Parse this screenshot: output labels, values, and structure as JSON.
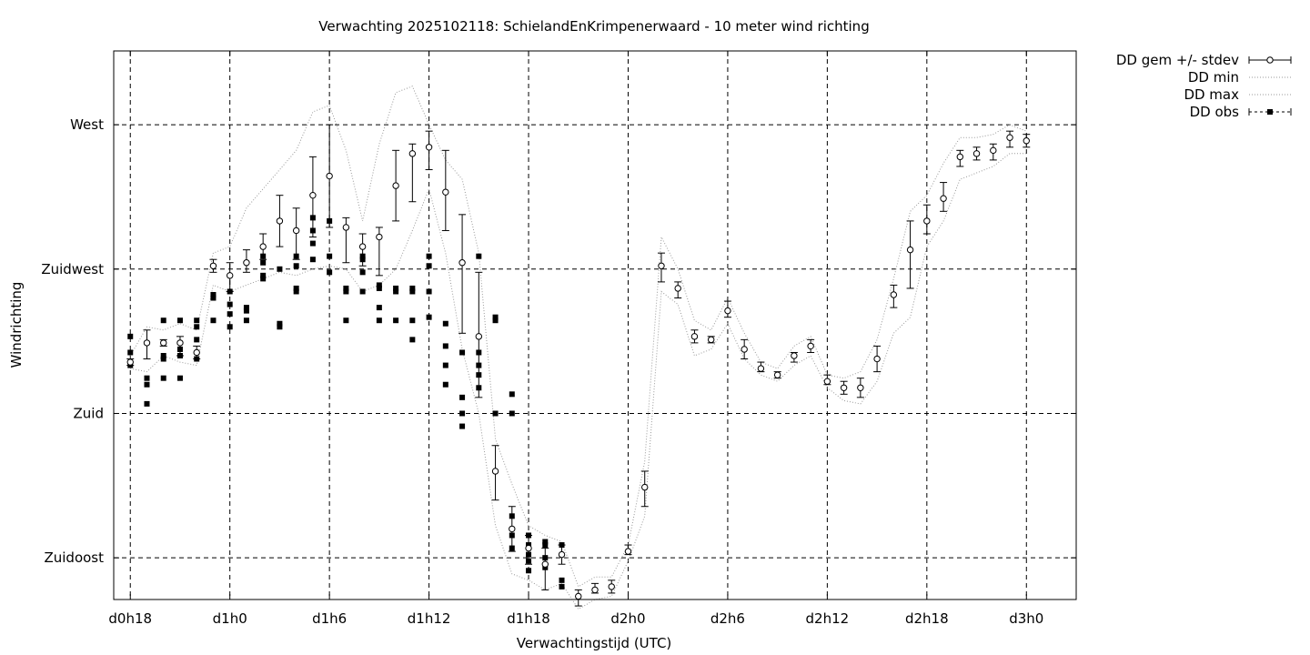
{
  "chart_data": {
    "type": "scatter",
    "title": "Verwachting 2025102118: SchielandEnKrimpenerwaard - 10 meter wind richting",
    "xlabel": "Verwachtingstijd (UTC)",
    "ylabel": "Windrichting",
    "xlim": [
      -1,
      57
    ],
    "ylim": [
      122,
      293
    ],
    "x_ticks": [
      {
        "v": 0,
        "label": "d0h18"
      },
      {
        "v": 6,
        "label": "d1h0"
      },
      {
        "v": 12,
        "label": "d1h6"
      },
      {
        "v": 18,
        "label": "d1h12"
      },
      {
        "v": 24,
        "label": "d1h18"
      },
      {
        "v": 30,
        "label": "d2h0"
      },
      {
        "v": 36,
        "label": "d2h6"
      },
      {
        "v": 42,
        "label": "d2h12"
      },
      {
        "v": 48,
        "label": "d2h18"
      },
      {
        "v": 54,
        "label": "d3h0"
      }
    ],
    "y_ticks": [
      {
        "v": 135,
        "label": "Zuidoost"
      },
      {
        "v": 180,
        "label": "Zuid"
      },
      {
        "v": 225,
        "label": "Zuidwest"
      },
      {
        "v": 270,
        "label": "West"
      }
    ],
    "grid": true,
    "legend_position": "outside-top-right",
    "legend": [
      "DD gem +/- stdev",
      "DD min",
      "DD max",
      "DD obs"
    ],
    "mean_stdev": [
      {
        "x": 0,
        "y": 196,
        "lo": 195,
        "hi": 197
      },
      {
        "x": 1,
        "y": 202,
        "lo": 197,
        "hi": 206
      },
      {
        "x": 2,
        "y": 202,
        "lo": 201,
        "hi": 203
      },
      {
        "x": 3,
        "y": 202,
        "lo": 198,
        "hi": 204
      },
      {
        "x": 4,
        "y": 199,
        "lo": 197,
        "hi": 201
      },
      {
        "x": 5,
        "y": 226,
        "lo": 224,
        "hi": 228
      },
      {
        "x": 6,
        "y": 223,
        "lo": 218,
        "hi": 227
      },
      {
        "x": 7,
        "y": 227,
        "lo": 224,
        "hi": 231
      },
      {
        "x": 8,
        "y": 232,
        "lo": 228,
        "hi": 236
      },
      {
        "x": 9,
        "y": 240,
        "lo": 232,
        "hi": 248
      },
      {
        "x": 10,
        "y": 237,
        "lo": 228,
        "hi": 244
      },
      {
        "x": 11,
        "y": 248,
        "lo": 235,
        "hi": 260
      },
      {
        "x": 12,
        "y": 254,
        "lo": 238,
        "hi": 270
      },
      {
        "x": 13,
        "y": 238,
        "lo": 227,
        "hi": 241
      },
      {
        "x": 14,
        "y": 232,
        "lo": 226,
        "hi": 236
      },
      {
        "x": 15,
        "y": 235,
        "lo": 223,
        "hi": 238
      },
      {
        "x": 16,
        "y": 251,
        "lo": 240,
        "hi": 262
      },
      {
        "x": 17,
        "y": 261,
        "lo": 246,
        "hi": 264
      },
      {
        "x": 18,
        "y": 263,
        "lo": 256,
        "hi": 268
      },
      {
        "x": 19,
        "y": 249,
        "lo": 237,
        "hi": 262
      },
      {
        "x": 20,
        "y": 227,
        "lo": 205,
        "hi": 242
      },
      {
        "x": 21,
        "y": 204,
        "lo": 185,
        "hi": 224
      },
      {
        "x": 22,
        "y": 162,
        "lo": 153,
        "hi": 170
      },
      {
        "x": 23,
        "y": 144,
        "lo": 137,
        "hi": 151
      },
      {
        "x": 24,
        "y": 138,
        "lo": 133,
        "hi": 142
      },
      {
        "x": 25,
        "y": 133,
        "lo": 125,
        "hi": 138
      },
      {
        "x": 26,
        "y": 136,
        "lo": 133,
        "hi": 139
      },
      {
        "x": 27,
        "y": 123,
        "lo": 120,
        "hi": 125
      },
      {
        "x": 28,
        "y": 125,
        "lo": 124,
        "hi": 127
      },
      {
        "x": 29,
        "y": 126,
        "lo": 124,
        "hi": 128
      },
      {
        "x": 30,
        "y": 137,
        "lo": 136,
        "hi": 139
      },
      {
        "x": 31,
        "y": 157,
        "lo": 151,
        "hi": 162
      },
      {
        "x": 32,
        "y": 226,
        "lo": 221,
        "hi": 230
      },
      {
        "x": 33,
        "y": 219,
        "lo": 216,
        "hi": 221
      },
      {
        "x": 34,
        "y": 204,
        "lo": 202,
        "hi": 206
      },
      {
        "x": 35,
        "y": 203,
        "lo": 202,
        "hi": 204
      },
      {
        "x": 36,
        "y": 212,
        "lo": 210,
        "hi": 215
      },
      {
        "x": 37,
        "y": 200,
        "lo": 197,
        "hi": 203
      },
      {
        "x": 38,
        "y": 194,
        "lo": 193,
        "hi": 196
      },
      {
        "x": 39,
        "y": 192,
        "lo": 191,
        "hi": 193
      },
      {
        "x": 40,
        "y": 198,
        "lo": 196,
        "hi": 199
      },
      {
        "x": 41,
        "y": 201,
        "lo": 199,
        "hi": 203
      },
      {
        "x": 42,
        "y": 190,
        "lo": 189,
        "hi": 192
      },
      {
        "x": 43,
        "y": 188,
        "lo": 186,
        "hi": 190
      },
      {
        "x": 44,
        "y": 188,
        "lo": 185,
        "hi": 191
      },
      {
        "x": 45,
        "y": 197,
        "lo": 193,
        "hi": 201
      },
      {
        "x": 46,
        "y": 217,
        "lo": 213,
        "hi": 220
      },
      {
        "x": 47,
        "y": 231,
        "lo": 219,
        "hi": 240
      },
      {
        "x": 48,
        "y": 240,
        "lo": 236,
        "hi": 245
      },
      {
        "x": 49,
        "y": 247,
        "lo": 243,
        "hi": 252
      },
      {
        "x": 50,
        "y": 260,
        "lo": 257,
        "hi": 262
      },
      {
        "x": 51,
        "y": 261,
        "lo": 259,
        "hi": 263
      },
      {
        "x": 52,
        "y": 262,
        "lo": 259,
        "hi": 264
      },
      {
        "x": 53,
        "y": 266,
        "lo": 263,
        "hi": 268
      },
      {
        "x": 54,
        "y": 265,
        "lo": 263,
        "hi": 267
      }
    ],
    "dd_min": [
      [
        0,
        194
      ],
      [
        1,
        193
      ],
      [
        2,
        198
      ],
      [
        3,
        196
      ],
      [
        4,
        195
      ],
      [
        5,
        220
      ],
      [
        6,
        218
      ],
      [
        7,
        220
      ],
      [
        8,
        222
      ],
      [
        9,
        224
      ],
      [
        10,
        223
      ],
      [
        11,
        225
      ],
      [
        12,
        226
      ],
      [
        13,
        225
      ],
      [
        14,
        218
      ],
      [
        15,
        220
      ],
      [
        16,
        225
      ],
      [
        17,
        237
      ],
      [
        18,
        250
      ],
      [
        19,
        230
      ],
      [
        20,
        200
      ],
      [
        21,
        180
      ],
      [
        22,
        145
      ],
      [
        23,
        130
      ],
      [
        24,
        128
      ],
      [
        25,
        125
      ],
      [
        26,
        127
      ],
      [
        27,
        119
      ],
      [
        28,
        122
      ],
      [
        29,
        123
      ],
      [
        30,
        134
      ],
      [
        31,
        148
      ],
      [
        32,
        218
      ],
      [
        33,
        214
      ],
      [
        34,
        198
      ],
      [
        35,
        200
      ],
      [
        36,
        208
      ],
      [
        37,
        197
      ],
      [
        38,
        192
      ],
      [
        39,
        190
      ],
      [
        40,
        195
      ],
      [
        41,
        198
      ],
      [
        42,
        188
      ],
      [
        43,
        184
      ],
      [
        44,
        183
      ],
      [
        45,
        190
      ],
      [
        46,
        205
      ],
      [
        47,
        210
      ],
      [
        48,
        232
      ],
      [
        49,
        240
      ],
      [
        50,
        253
      ],
      [
        51,
        255
      ],
      [
        52,
        257
      ],
      [
        53,
        261
      ],
      [
        54,
        261
      ]
    ],
    "dd_max": [
      [
        0,
        198
      ],
      [
        1,
        207
      ],
      [
        2,
        206
      ],
      [
        3,
        208
      ],
      [
        4,
        206
      ],
      [
        5,
        230
      ],
      [
        6,
        232
      ],
      [
        7,
        244
      ],
      [
        8,
        250
      ],
      [
        9,
        256
      ],
      [
        10,
        262
      ],
      [
        11,
        274
      ],
      [
        12,
        276
      ],
      [
        13,
        262
      ],
      [
        14,
        240
      ],
      [
        15,
        264
      ],
      [
        16,
        280
      ],
      [
        17,
        282
      ],
      [
        18,
        270
      ],
      [
        19,
        259
      ],
      [
        20,
        253
      ],
      [
        21,
        230
      ],
      [
        22,
        172
      ],
      [
        23,
        158
      ],
      [
        24,
        145
      ],
      [
        25,
        142
      ],
      [
        26,
        140
      ],
      [
        27,
        126
      ],
      [
        28,
        129
      ],
      [
        29,
        129
      ],
      [
        30,
        139
      ],
      [
        31,
        165
      ],
      [
        32,
        235
      ],
      [
        33,
        225
      ],
      [
        34,
        209
      ],
      [
        35,
        206
      ],
      [
        36,
        216
      ],
      [
        37,
        205
      ],
      [
        38,
        196
      ],
      [
        39,
        194
      ],
      [
        40,
        201
      ],
      [
        41,
        204
      ],
      [
        42,
        192
      ],
      [
        43,
        191
      ],
      [
        44,
        193
      ],
      [
        45,
        203
      ],
      [
        46,
        222
      ],
      [
        47,
        243
      ],
      [
        48,
        248
      ],
      [
        49,
        258
      ],
      [
        50,
        266
      ],
      [
        51,
        266
      ],
      [
        52,
        267
      ],
      [
        53,
        270
      ],
      [
        54,
        268
      ]
    ],
    "dd_obs": [
      [
        0,
        195
      ],
      [
        0,
        199
      ],
      [
        0,
        204
      ],
      [
        1,
        191
      ],
      [
        1,
        189
      ],
      [
        1,
        183
      ],
      [
        2,
        198
      ],
      [
        2,
        197
      ],
      [
        2,
        191
      ],
      [
        2,
        209
      ],
      [
        3,
        200
      ],
      [
        3,
        198
      ],
      [
        3,
        191
      ],
      [
        3,
        209
      ],
      [
        4,
        203
      ],
      [
        4,
        197
      ],
      [
        4,
        207
      ],
      [
        4,
        209
      ],
      [
        5,
        216
      ],
      [
        5,
        217
      ],
      [
        5,
        209
      ],
      [
        6,
        218
      ],
      [
        6,
        214
      ],
      [
        6,
        211
      ],
      [
        6,
        207
      ],
      [
        7,
        213
      ],
      [
        7,
        212
      ],
      [
        7,
        209
      ],
      [
        8,
        223
      ],
      [
        8,
        222
      ],
      [
        8,
        229
      ],
      [
        8,
        227
      ],
      [
        9,
        225
      ],
      [
        9,
        208
      ],
      [
        9,
        207
      ],
      [
        10,
        219
      ],
      [
        10,
        218
      ],
      [
        10,
        226
      ],
      [
        10,
        229
      ],
      [
        11,
        241
      ],
      [
        11,
        237
      ],
      [
        11,
        233
      ],
      [
        11,
        228
      ],
      [
        12,
        240
      ],
      [
        12,
        229
      ],
      [
        12,
        224
      ],
      [
        13,
        219
      ],
      [
        13,
        218
      ],
      [
        13,
        209
      ],
      [
        14,
        229
      ],
      [
        14,
        228
      ],
      [
        14,
        224
      ],
      [
        14,
        218
      ],
      [
        15,
        220
      ],
      [
        15,
        213
      ],
      [
        15,
        209
      ],
      [
        15,
        219
      ],
      [
        16,
        218
      ],
      [
        16,
        219
      ],
      [
        16,
        209
      ],
      [
        17,
        219
      ],
      [
        17,
        218
      ],
      [
        17,
        203
      ],
      [
        17,
        209
      ],
      [
        18,
        229
      ],
      [
        18,
        226
      ],
      [
        18,
        218
      ],
      [
        18,
        210
      ],
      [
        19,
        208
      ],
      [
        19,
        201
      ],
      [
        19,
        195
      ],
      [
        19,
        189
      ],
      [
        20,
        199
      ],
      [
        20,
        185
      ],
      [
        20,
        180
      ],
      [
        20,
        176
      ],
      [
        21,
        199
      ],
      [
        21,
        195
      ],
      [
        21,
        192
      ],
      [
        21,
        188
      ],
      [
        21,
        229
      ],
      [
        22,
        210
      ],
      [
        22,
        209
      ],
      [
        22,
        180
      ],
      [
        23,
        180
      ],
      [
        23,
        186
      ],
      [
        23,
        148
      ],
      [
        23,
        142
      ],
      [
        23,
        138
      ],
      [
        24,
        142
      ],
      [
        24,
        139
      ],
      [
        24,
        136
      ],
      [
        24,
        134
      ],
      [
        24,
        131
      ],
      [
        25,
        140
      ],
      [
        25,
        139
      ],
      [
        25,
        135
      ],
      [
        25,
        132
      ],
      [
        26,
        139
      ],
      [
        26,
        128
      ],
      [
        26,
        126
      ]
    ]
  }
}
